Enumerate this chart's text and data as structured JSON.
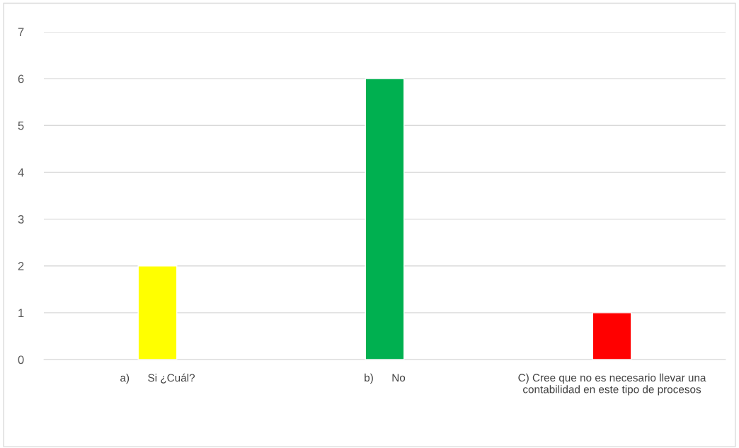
{
  "chart_data": {
    "type": "bar",
    "categories": [
      "a)      Si ¿Cuál?",
      "b)      No",
      "C) Cree que no es necesario llevar una contabilidad en este tipo de procesos"
    ],
    "values": [
      2,
      6,
      1
    ],
    "colors": [
      "#ffff00",
      "#00b050",
      "#ff0000"
    ],
    "ylim": [
      0,
      7
    ],
    "yticks": [
      0,
      1,
      2,
      3,
      4,
      5,
      6,
      7
    ],
    "grid": "y",
    "legend": false
  }
}
